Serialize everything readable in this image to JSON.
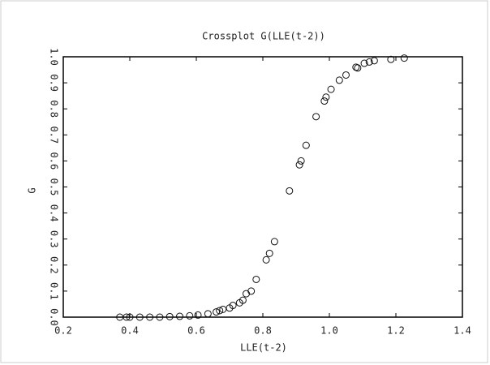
{
  "chart_data": {
    "type": "scatter",
    "title": "Crossplot G(LLE(t-2))",
    "x_label": "LLE(t-2)",
    "y_label": "G",
    "xlim": [
      0.2,
      1.4
    ],
    "ylim": [
      0,
      1
    ],
    "xticks": [
      0.2,
      0.4,
      0.6,
      0.8,
      {
        "value": 1,
        "label": "1.0"
      },
      1.2,
      1.4
    ],
    "yticks": [
      {
        "value": 0,
        "label": "0.0"
      },
      0.1,
      0.2,
      0.3,
      0.4,
      0.5,
      0.6,
      0.7,
      0.8,
      0.9,
      {
        "value": 1,
        "label": "1.0"
      }
    ],
    "color": "#111111",
    "x": [
      0.37,
      0.39,
      0.4,
      0.43,
      0.46,
      0.49,
      0.52,
      0.55,
      0.58,
      0.605,
      0.635,
      0.66,
      0.67,
      0.68,
      0.7,
      0.71,
      0.73,
      0.74,
      0.75,
      0.765,
      0.78,
      0.81,
      0.82,
      0.835,
      0.88,
      0.91,
      0.915,
      0.93,
      0.96,
      0.985,
      0.99,
      1.005,
      1.03,
      1.05,
      1.08,
      1.085,
      1.105,
      1.12,
      1.135,
      1.185,
      1.225
    ],
    "values": [
      0.0,
      0.0,
      0.0,
      0.0,
      0.0,
      0.0,
      0.002,
      0.003,
      0.005,
      0.008,
      0.013,
      0.02,
      0.025,
      0.03,
      0.035,
      0.045,
      0.055,
      0.065,
      0.09,
      0.1,
      0.145,
      0.22,
      0.245,
      0.29,
      0.485,
      0.585,
      0.6,
      0.66,
      0.77,
      0.83,
      0.845,
      0.875,
      0.91,
      0.93,
      0.96,
      0.957,
      0.975,
      0.98,
      0.985,
      0.99,
      0.995
    ]
  }
}
